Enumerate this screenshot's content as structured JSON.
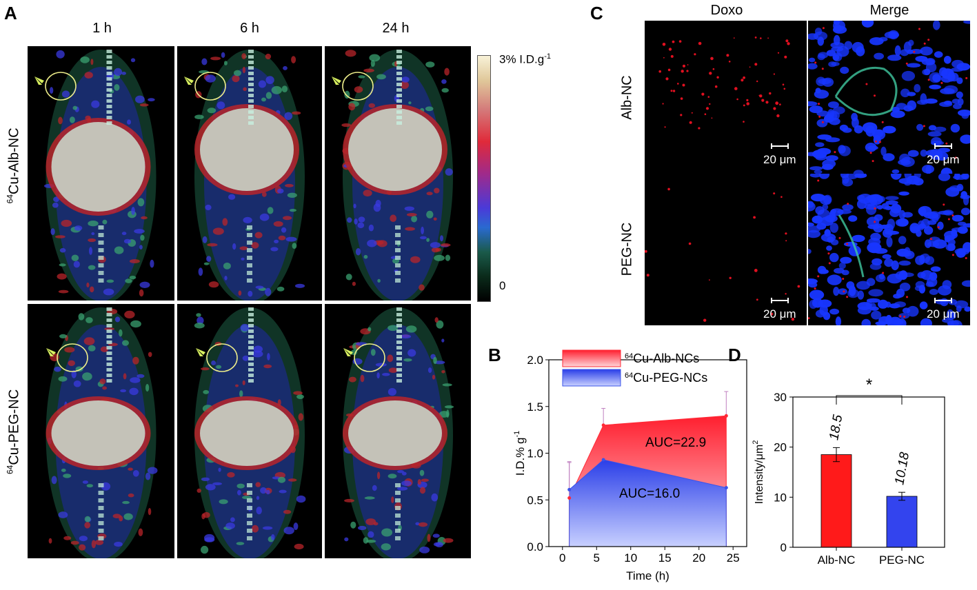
{
  "panels": {
    "a": "A",
    "b": "B",
    "c": "C",
    "d": "D"
  },
  "panel_a": {
    "time_labels": [
      "1 h",
      "6 h",
      "24 h"
    ],
    "row_labels": [
      {
        "sup": "64",
        "text": "Cu-Alb-NC"
      },
      {
        "sup": "64",
        "text": "Cu-PEG-NC"
      }
    ],
    "colorbar": {
      "max_label": "3% I.D.g",
      "max_sup": "-1",
      "min_label": "0"
    },
    "colors": {
      "arrow": "#d8f060",
      "roi": "#ecec8a",
      "organ": "#c4c2b8",
      "signal_hot": "#b8242a",
      "signal_mid": "#3a3ae0"
    }
  },
  "panel_c": {
    "col_labels": [
      "Doxo",
      "Merge"
    ],
    "row_labels": [
      "Alb-NC",
      "PEG-NC"
    ],
    "scale_label": "20 μm",
    "colors": {
      "doxo": "#e01020",
      "nuclei": "#1836ff",
      "vessel": "#40c8a0"
    }
  },
  "chart_data": [
    {
      "type": "area",
      "panel": "B",
      "xlabel": "Time (h)",
      "ylabel": "I.D.% g",
      "ylabel_sup": "-1",
      "xlim": [
        -2,
        27
      ],
      "ylim": [
        0,
        2.0
      ],
      "xticks": [
        0,
        5,
        10,
        15,
        20,
        25
      ],
      "yticks": [
        0.0,
        0.5,
        1.0,
        1.5,
        2.0
      ],
      "xtick_labels": [
        "0",
        "5",
        "10",
        "15",
        "20",
        "25"
      ],
      "ytick_labels": [
        "0.0",
        "0.5",
        "1.0",
        "1.5",
        "2.0"
      ],
      "legend_position": "top",
      "series": [
        {
          "name_sup": "64",
          "name": "Cu-Alb-NCs",
          "color": "#ff2a36",
          "x": [
            1,
            6,
            24
          ],
          "y": [
            0.52,
            1.3,
            1.4
          ],
          "err": [
            0.38,
            0.18,
            0.26
          ],
          "auc_label": "AUC=22.9"
        },
        {
          "name_sup": "64",
          "name": "Cu-PEG-NCs",
          "color": "#3a53e8",
          "x": [
            1,
            6,
            24
          ],
          "y": [
            0.61,
            0.93,
            0.63
          ],
          "err": [
            0.3,
            0.0,
            0.0
          ],
          "auc_label": "AUC=16.0"
        }
      ]
    },
    {
      "type": "bar",
      "panel": "D",
      "categories": [
        "Alb-NC",
        "PEG-NC"
      ],
      "values": [
        18.5,
        10.18
      ],
      "value_labels": [
        "18.5",
        "10.18"
      ],
      "errors": [
        1.4,
        0.8
      ],
      "colors": [
        "#ff1a1a",
        "#3344ee"
      ],
      "ylabel": "Intensity/μm",
      "ylabel_sup": "2",
      "ylim": [
        0,
        30
      ],
      "yticks": [
        0,
        10,
        20,
        30
      ],
      "ytick_labels": [
        "0",
        "10",
        "20",
        "30"
      ],
      "significance": "*"
    }
  ]
}
